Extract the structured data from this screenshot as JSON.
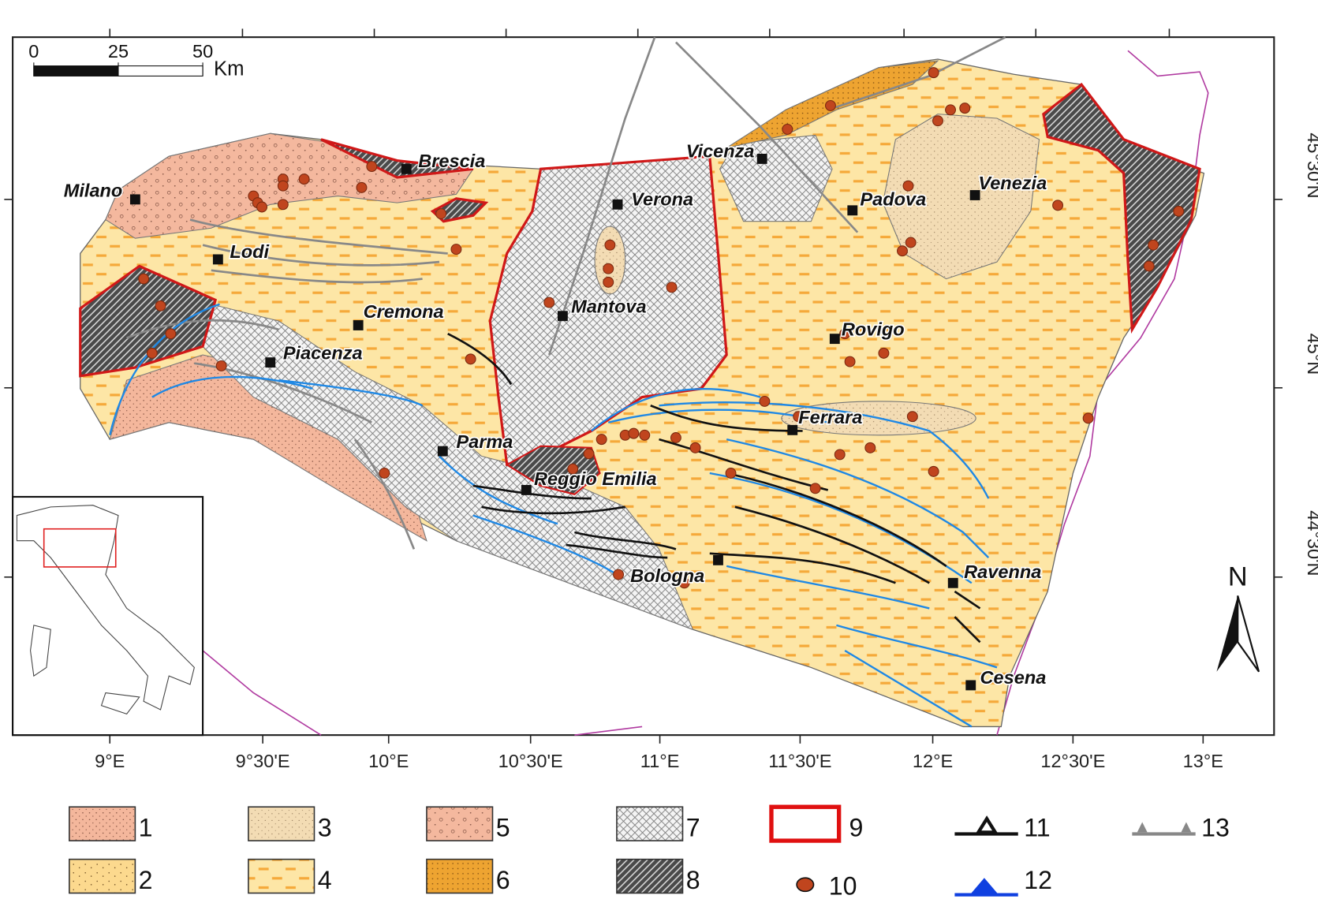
{
  "scale_bar": {
    "ticks": [
      0,
      25,
      50
    ],
    "unit": "Km"
  },
  "cities": [
    "Milano",
    "Brescia",
    "Vicenza",
    "Verona",
    "Padova",
    "Venezia",
    "Lodi",
    "Cremona",
    "Mantova",
    "Rovigo",
    "Piacenza",
    "Parma",
    "Ferrara",
    "Reggio Emilia",
    "Bologna",
    "Ravenna",
    "Cesena"
  ],
  "longitude_labels": [
    "9°E",
    "9°30'E",
    "10°E",
    "10°30'E",
    "11°E",
    "11°30'E",
    "12°E",
    "12°30'E",
    "13°E"
  ],
  "latitude_labels": [
    "45°30'N",
    "45°N",
    "44°30'N"
  ],
  "north_label": "N",
  "legend": [
    "1",
    "3",
    "5",
    "7",
    "9",
    "11",
    "13",
    "2",
    "4",
    "6",
    "8",
    "10",
    "12"
  ]
}
